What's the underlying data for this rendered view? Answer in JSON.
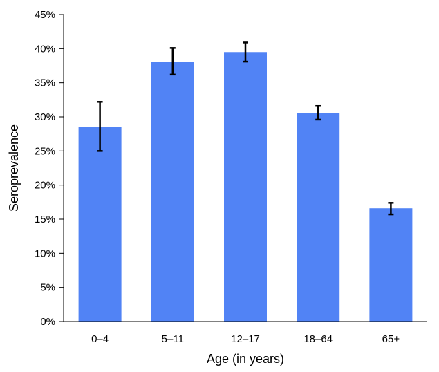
{
  "chart_data": {
    "type": "bar",
    "title": "",
    "xlabel": "Age (in years)",
    "ylabel": "Seroprevalence",
    "categories": [
      "0–4",
      "5–11",
      "12–17",
      "18–64",
      "65+"
    ],
    "values": [
      28.5,
      38.1,
      39.5,
      30.6,
      16.6
    ],
    "error_low": [
      25.0,
      36.2,
      38.1,
      29.6,
      15.7
    ],
    "error_high": [
      32.2,
      40.1,
      40.9,
      31.6,
      17.4
    ],
    "ylim": [
      0,
      45
    ],
    "y_ticks": [
      0,
      5,
      10,
      15,
      20,
      25,
      30,
      35,
      40,
      45
    ],
    "y_tick_labels": [
      "0%",
      "5%",
      "10%",
      "15%",
      "20%",
      "25%",
      "30%",
      "35%",
      "40%",
      "45%"
    ],
    "grid": false,
    "legend": "none",
    "bar_color": "#5183F5",
    "error_bar_color": "#000000",
    "axis_color": "#000000"
  }
}
